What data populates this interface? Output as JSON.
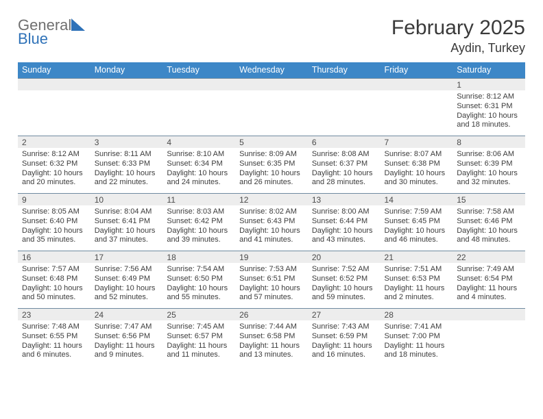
{
  "logo": {
    "general": "General",
    "blue": "Blue"
  },
  "header": {
    "month_title": "February 2025",
    "location": "Aydin, Turkey"
  },
  "style": {
    "header_bg": "#3d87c7",
    "header_fg": "#ffffff",
    "daynum_bg": "#ededed",
    "border_color": "#6f8aa0",
    "logo_icon_color": "#2f72b8",
    "body_bg": "#ffffff",
    "text_color": "#333333",
    "title_fontsize": 30,
    "location_fontsize": 18,
    "th_fontsize": 12.5,
    "cell_fontsize": 11
  },
  "weekdays": [
    "Sunday",
    "Monday",
    "Tuesday",
    "Wednesday",
    "Thursday",
    "Friday",
    "Saturday"
  ],
  "weeks": [
    [
      {
        "blank": true
      },
      {
        "blank": true
      },
      {
        "blank": true
      },
      {
        "blank": true
      },
      {
        "blank": true
      },
      {
        "blank": true
      },
      {
        "day": "1",
        "sunrise": "8:12 AM",
        "sunset": "6:31 PM",
        "daylight": "10 hours and 18 minutes."
      }
    ],
    [
      {
        "day": "2",
        "sunrise": "8:12 AM",
        "sunset": "6:32 PM",
        "daylight": "10 hours and 20 minutes."
      },
      {
        "day": "3",
        "sunrise": "8:11 AM",
        "sunset": "6:33 PM",
        "daylight": "10 hours and 22 minutes."
      },
      {
        "day": "4",
        "sunrise": "8:10 AM",
        "sunset": "6:34 PM",
        "daylight": "10 hours and 24 minutes."
      },
      {
        "day": "5",
        "sunrise": "8:09 AM",
        "sunset": "6:35 PM",
        "daylight": "10 hours and 26 minutes."
      },
      {
        "day": "6",
        "sunrise": "8:08 AM",
        "sunset": "6:37 PM",
        "daylight": "10 hours and 28 minutes."
      },
      {
        "day": "7",
        "sunrise": "8:07 AM",
        "sunset": "6:38 PM",
        "daylight": "10 hours and 30 minutes."
      },
      {
        "day": "8",
        "sunrise": "8:06 AM",
        "sunset": "6:39 PM",
        "daylight": "10 hours and 32 minutes."
      }
    ],
    [
      {
        "day": "9",
        "sunrise": "8:05 AM",
        "sunset": "6:40 PM",
        "daylight": "10 hours and 35 minutes."
      },
      {
        "day": "10",
        "sunrise": "8:04 AM",
        "sunset": "6:41 PM",
        "daylight": "10 hours and 37 minutes."
      },
      {
        "day": "11",
        "sunrise": "8:03 AM",
        "sunset": "6:42 PM",
        "daylight": "10 hours and 39 minutes."
      },
      {
        "day": "12",
        "sunrise": "8:02 AM",
        "sunset": "6:43 PM",
        "daylight": "10 hours and 41 minutes."
      },
      {
        "day": "13",
        "sunrise": "8:00 AM",
        "sunset": "6:44 PM",
        "daylight": "10 hours and 43 minutes."
      },
      {
        "day": "14",
        "sunrise": "7:59 AM",
        "sunset": "6:45 PM",
        "daylight": "10 hours and 46 minutes."
      },
      {
        "day": "15",
        "sunrise": "7:58 AM",
        "sunset": "6:46 PM",
        "daylight": "10 hours and 48 minutes."
      }
    ],
    [
      {
        "day": "16",
        "sunrise": "7:57 AM",
        "sunset": "6:48 PM",
        "daylight": "10 hours and 50 minutes."
      },
      {
        "day": "17",
        "sunrise": "7:56 AM",
        "sunset": "6:49 PM",
        "daylight": "10 hours and 52 minutes."
      },
      {
        "day": "18",
        "sunrise": "7:54 AM",
        "sunset": "6:50 PM",
        "daylight": "10 hours and 55 minutes."
      },
      {
        "day": "19",
        "sunrise": "7:53 AM",
        "sunset": "6:51 PM",
        "daylight": "10 hours and 57 minutes."
      },
      {
        "day": "20",
        "sunrise": "7:52 AM",
        "sunset": "6:52 PM",
        "daylight": "10 hours and 59 minutes."
      },
      {
        "day": "21",
        "sunrise": "7:51 AM",
        "sunset": "6:53 PM",
        "daylight": "11 hours and 2 minutes."
      },
      {
        "day": "22",
        "sunrise": "7:49 AM",
        "sunset": "6:54 PM",
        "daylight": "11 hours and 4 minutes."
      }
    ],
    [
      {
        "day": "23",
        "sunrise": "7:48 AM",
        "sunset": "6:55 PM",
        "daylight": "11 hours and 6 minutes."
      },
      {
        "day": "24",
        "sunrise": "7:47 AM",
        "sunset": "6:56 PM",
        "daylight": "11 hours and 9 minutes."
      },
      {
        "day": "25",
        "sunrise": "7:45 AM",
        "sunset": "6:57 PM",
        "daylight": "11 hours and 11 minutes."
      },
      {
        "day": "26",
        "sunrise": "7:44 AM",
        "sunset": "6:58 PM",
        "daylight": "11 hours and 13 minutes."
      },
      {
        "day": "27",
        "sunrise": "7:43 AM",
        "sunset": "6:59 PM",
        "daylight": "11 hours and 16 minutes."
      },
      {
        "day": "28",
        "sunrise": "7:41 AM",
        "sunset": "7:00 PM",
        "daylight": "11 hours and 18 minutes."
      },
      {
        "blank": true
      }
    ]
  ],
  "labels": {
    "sunrise": "Sunrise: ",
    "sunset": "Sunset: ",
    "daylight": "Daylight: "
  }
}
